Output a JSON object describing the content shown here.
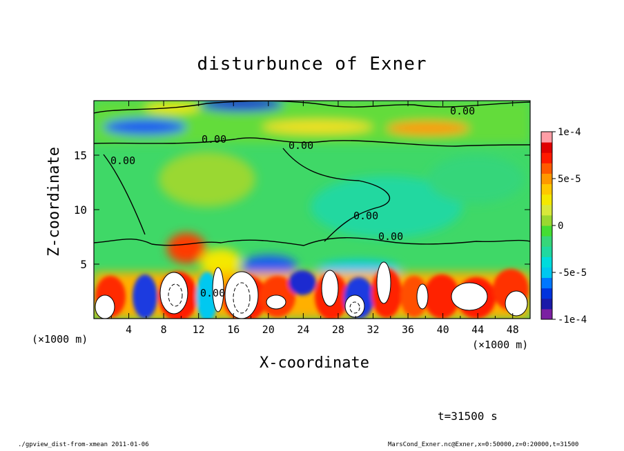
{
  "chart_data": {
    "type": "heatmap",
    "title": "disturbunce of Exner",
    "xlabel": "X-coordinate",
    "ylabel": "Z-coordinate",
    "x_unit_label": "(×1000 m)",
    "xlim": [
      0,
      50
    ],
    "ylim": [
      0,
      20
    ],
    "x_ticks": [
      4,
      8,
      12,
      16,
      20,
      24,
      28,
      32,
      36,
      40,
      44,
      48
    ],
    "y_ticks": [
      5,
      10,
      15
    ],
    "colorbar": {
      "range": [
        -0.0001,
        0.0001
      ],
      "tick_labels": [
        "1e-4",
        "5e-5",
        "0",
        "-5e-5",
        "-1e-4"
      ],
      "tick_values": [
        0.0001,
        5e-05,
        0,
        -5e-05,
        -0.0001
      ],
      "colors": [
        "#7b1fa2",
        "#1a1aa8",
        "#0033dd",
        "#0077ff",
        "#00c8f0",
        "#00dcdc",
        "#20d8a0",
        "#36d67a",
        "#44dd33",
        "#9ad830",
        "#d8e83a",
        "#f4e800",
        "#ffc800",
        "#ff9800",
        "#ff5a00",
        "#ff1a00",
        "#e00000",
        "#ff9ea6"
      ]
    },
    "contour_labels": [
      "0.00",
      "0.00",
      "0.00",
      "0.00",
      "0.00",
      "0.00",
      "0.00"
    ],
    "time_label": "t=31500 s"
  },
  "footer": {
    "left": "./gpview_dist-from-xmean  2011-01-06",
    "right": "MarsCond_Exner.nc@Exner,x=0:50000,z=0:20000,t=31500"
  }
}
